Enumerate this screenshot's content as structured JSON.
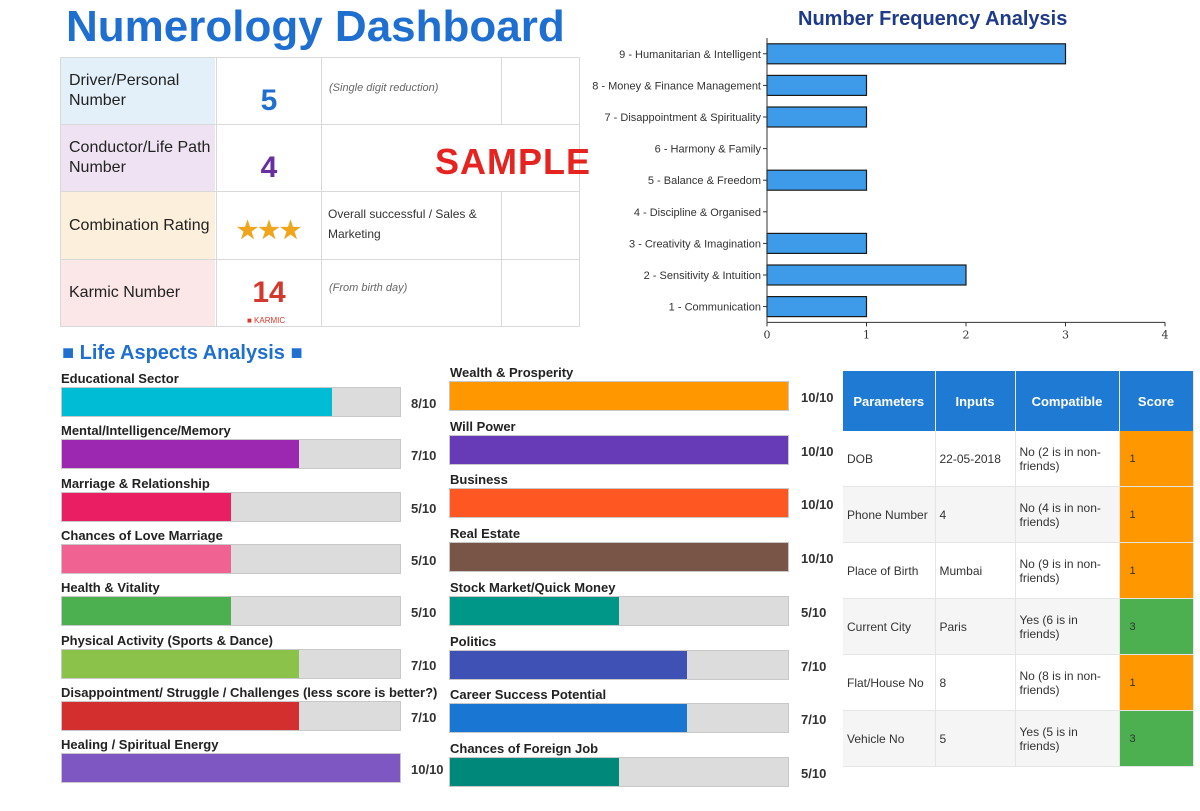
{
  "title": "Numerology Dashboard",
  "sample_watermark": "SAMPLE",
  "summary": [
    {
      "label": "Driver/Personal Number",
      "value": "5",
      "value_color": "#1f6fd1",
      "bg": "#e3f0fa",
      "note": "(Single digit reduction)"
    },
    {
      "label": "Conductor/Life Path Number",
      "value": "4",
      "value_color": "#6a2ea0",
      "bg": "#efe3f3",
      "note": ""
    },
    {
      "label": "Combination Rating",
      "value": "★★★",
      "value_color": "#f0a51c",
      "bg": "#fcefdc",
      "note": "Overall successful / Sales & Marketing"
    },
    {
      "label": "Karmic Number",
      "value": "14",
      "value_color": "#d23a2e",
      "bg": "#fbe7e7",
      "note": "(From birth day)",
      "badge": "■ KARMIC"
    }
  ],
  "freq_title": "Number Frequency Analysis",
  "chart_data": [
    {
      "type": "bar",
      "orientation": "horizontal",
      "title": "Number Frequency Analysis",
      "categories": [
        "9 - Humanitarian & Intelligent",
        "8 - Money & Finance Management",
        "7 - Disappointment & Spirituality",
        "6 - Harmony & Family",
        "5 - Balance & Freedom",
        "4 - Discipline & Organised",
        "3 - Creativity & Imagination",
        "2 - Sensitivity & Intuition",
        "1 - Communication"
      ],
      "values": [
        3,
        1,
        1,
        0,
        1,
        0,
        1,
        2,
        1
      ],
      "xlim": [
        0,
        4
      ],
      "xticks": [
        "0",
        "1",
        "2",
        "3",
        "4"
      ],
      "bar_color": "#3d9be9"
    },
    {
      "type": "bar",
      "orientation": "horizontal",
      "title": "Life Aspects Analysis",
      "xlim": [
        0,
        10
      ],
      "columns": [
        [
          {
            "label": "Educational Sector",
            "value": 8,
            "score": "8/10",
            "color": "#00bcd4"
          },
          {
            "label": "Mental/Intelligence/Memory",
            "value": 7,
            "score": "7/10",
            "color": "#9c27b0"
          },
          {
            "label": "Marriage & Relationship",
            "value": 5,
            "score": "5/10",
            "color": "#e91e63"
          },
          {
            "label": "Chances of Love Marriage",
            "value": 5,
            "score": "5/10",
            "color": "#f06292"
          },
          {
            "label": "Health & Vitality",
            "value": 5,
            "score": "5/10",
            "color": "#4caf50"
          },
          {
            "label": "Physical Activity (Sports & Dance)",
            "value": 7,
            "score": "7/10",
            "color": "#8bc34a"
          },
          {
            "label": "Disappointment/ Struggle / Challenges (less score is better?)",
            "value": 7,
            "score": "7/10",
            "color": "#d32f2f"
          },
          {
            "label": "Healing / Spiritual Energy",
            "value": 10,
            "score": "10/10",
            "color": "#7e57c2"
          }
        ],
        [
          {
            "label": "Wealth & Prosperity",
            "value": 10,
            "score": "10/10",
            "color": "#ff9800"
          },
          {
            "label": "Will Power",
            "value": 10,
            "score": "10/10",
            "color": "#673ab7"
          },
          {
            "label": "Business",
            "value": 10,
            "score": "10/10",
            "color": "#ff5722"
          },
          {
            "label": "Real Estate",
            "value": 10,
            "score": "10/10",
            "color": "#795548"
          },
          {
            "label": "Stock Market/Quick Money",
            "value": 5,
            "score": "5/10",
            "color": "#009688"
          },
          {
            "label": "Politics",
            "value": 7,
            "score": "7/10",
            "color": "#3f51b5"
          },
          {
            "label": "Career Success Potential",
            "value": 7,
            "score": "7/10",
            "color": "#1976d2"
          },
          {
            "label": "Chances of Foreign Job",
            "value": 5,
            "score": "5/10",
            "color": "#00897b"
          }
        ]
      ]
    }
  ],
  "life_title": "■ Life Aspects Analysis ■",
  "compat": {
    "headers": [
      "Parameters",
      "Inputs",
      "Compatible",
      "Score"
    ],
    "rows": [
      {
        "param": "DOB",
        "input": "22-05-2018",
        "compatible": "No (2 is in non-friends)",
        "score": "1",
        "score_color": "#ff9800"
      },
      {
        "param": "Phone Number",
        "input": "4",
        "compatible": "No (4 is in non-friends)",
        "score": "1",
        "score_color": "#ff9800"
      },
      {
        "param": "Place of Birth",
        "input": "Mumbai",
        "compatible": "No (9 is in non-friends)",
        "score": "1",
        "score_color": "#ff9800"
      },
      {
        "param": "Current City",
        "input": "Paris",
        "compatible": "Yes (6 is in friends)",
        "score": "3",
        "score_color": "#4caf50"
      },
      {
        "param": "Flat/House No",
        "input": "8",
        "compatible": "No (8 is in non-friends)",
        "score": "1",
        "score_color": "#ff9800"
      },
      {
        "param": "Vehicle No",
        "input": "5",
        "compatible": "Yes (5 is in friends)",
        "score": "3",
        "score_color": "#4caf50"
      }
    ]
  }
}
